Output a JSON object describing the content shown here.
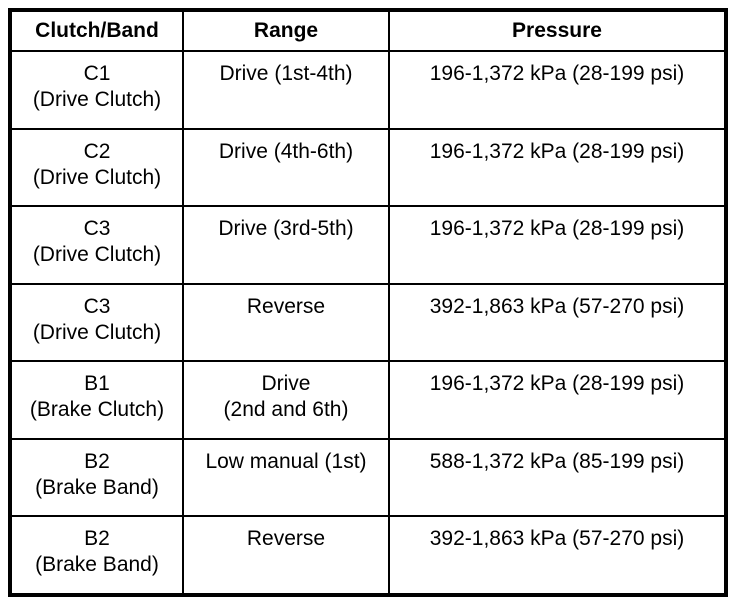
{
  "table": {
    "columns": [
      "Clutch/Band",
      "Range",
      "Pressure"
    ],
    "rows": [
      {
        "clutch": [
          "C1",
          "(Drive Clutch)"
        ],
        "range": [
          "Drive (1st-4th)"
        ],
        "pressure": "196-1,372 kPa (28-199 psi)"
      },
      {
        "clutch": [
          "C2",
          "(Drive Clutch)"
        ],
        "range": [
          "Drive (4th-6th)"
        ],
        "pressure": "196-1,372 kPa (28-199 psi)"
      },
      {
        "clutch": [
          "C3",
          "(Drive Clutch)"
        ],
        "range": [
          "Drive (3rd-5th)"
        ],
        "pressure": "196-1,372 kPa (28-199 psi)"
      },
      {
        "clutch": [
          "C3",
          "(Drive Clutch)"
        ],
        "range": [
          "Reverse"
        ],
        "pressure": "392-1,863 kPa (57-270 psi)"
      },
      {
        "clutch": [
          "B1",
          "(Brake Clutch)"
        ],
        "range": [
          "Drive",
          "(2nd and 6th)"
        ],
        "pressure": "196-1,372 kPa (28-199 psi)"
      },
      {
        "clutch": [
          "B2",
          "(Brake Band)"
        ],
        "range": [
          "Low manual (1st)"
        ],
        "pressure": "588-1,372 kPa (85-199 psi)"
      },
      {
        "clutch": [
          "B2",
          "(Brake Band)"
        ],
        "range": [
          "Reverse"
        ],
        "pressure": "392-1,863 kPa (57-270 psi)"
      }
    ]
  },
  "colors": {
    "border": "#000000",
    "text": "#000000",
    "background": "#ffffff"
  }
}
